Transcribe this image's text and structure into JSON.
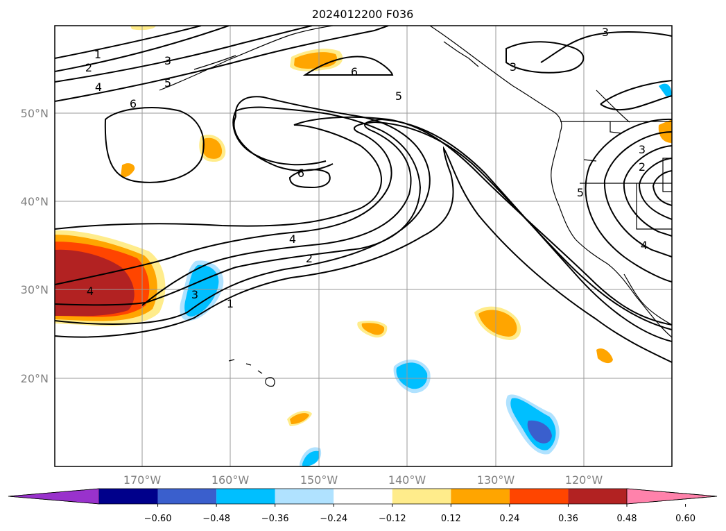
{
  "title": "2024012200 F036",
  "map": {
    "lon_labels": [
      "170°W",
      "160°W",
      "150°W",
      "140°W",
      "130°W",
      "120°W"
    ],
    "lat_labels": [
      "50°N",
      "40°N",
      "30°N",
      "20°N"
    ],
    "gridlines": true
  },
  "contour_labels": [
    "1",
    "2",
    "3",
    "4",
    "5",
    "6",
    "6",
    "6",
    "5",
    "4",
    "2",
    "1",
    "3",
    "4",
    "3",
    "2",
    "3",
    "5",
    "4",
    "3"
  ],
  "colorbar": {
    "ticks": [
      "−0.60",
      "−0.48",
      "−0.36",
      "−0.24",
      "−0.12",
      "0.12",
      "0.24",
      "0.36",
      "0.48",
      "0.60"
    ],
    "colors": [
      "#9932cc",
      "#00008b",
      "#3a5fcd",
      "#00bfff",
      "#b0e2ff",
      "#ffffff",
      "#ffec8b",
      "#ffa500",
      "#ff4500",
      "#b22222",
      "#ff82ab"
    ]
  }
}
